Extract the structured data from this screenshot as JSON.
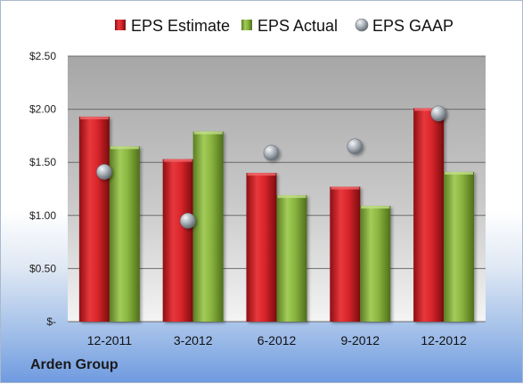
{
  "chart_data": {
    "type": "bar",
    "categories": [
      "12-2011",
      "3-2012",
      "6-2012",
      "9-2012",
      "12-2012"
    ],
    "series": [
      {
        "name": "EPS Estimate",
        "kind": "bar",
        "color": "#d9262b",
        "values": [
          1.93,
          1.53,
          1.4,
          1.27,
          2.01
        ]
      },
      {
        "name": "EPS Actual",
        "kind": "bar",
        "color": "#8ab53f",
        "values": [
          1.65,
          1.79,
          1.19,
          1.09,
          1.41
        ]
      },
      {
        "name": "EPS GAAP",
        "kind": "scatter",
        "color": "#9aa3ad",
        "values": [
          1.41,
          0.95,
          1.59,
          1.65,
          1.96
        ]
      }
    ],
    "yticks": [
      {
        "value": 0,
        "label": "$-"
      },
      {
        "value": 0.5,
        "label": "$0.50"
      },
      {
        "value": 1.0,
        "label": "$1.00"
      },
      {
        "value": 1.5,
        "label": "$1.50"
      },
      {
        "value": 2.0,
        "label": "$2.00"
      },
      {
        "value": 2.5,
        "label": "$2.50"
      }
    ],
    "ylim": [
      0,
      2.5
    ],
    "grid": true,
    "legend": "top",
    "title": "",
    "xlabel": "",
    "ylabel": ""
  },
  "company_label": "Arden Group"
}
